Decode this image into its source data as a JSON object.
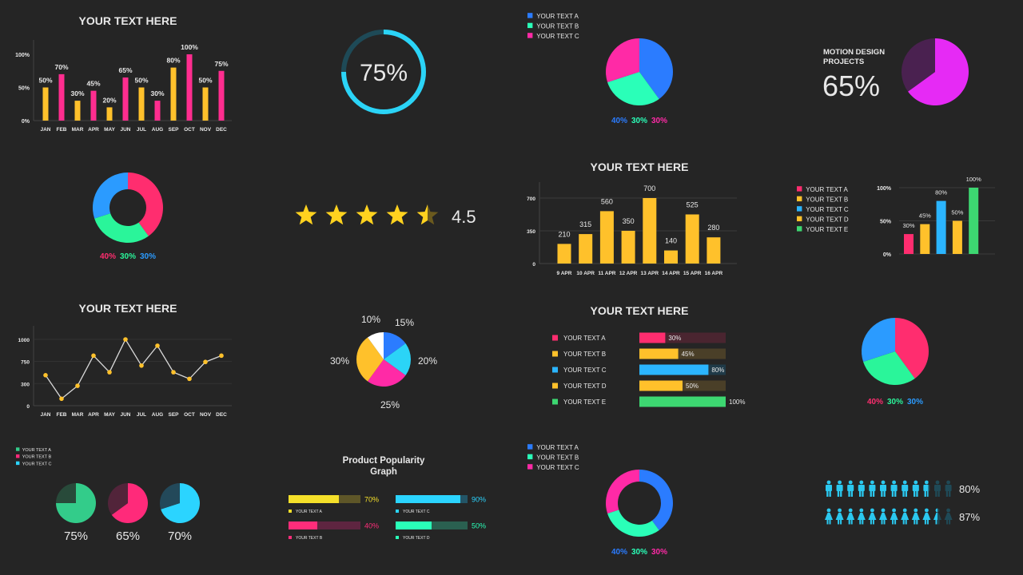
{
  "chart_data": [
    {
      "type": "bar",
      "title": "YOUR TEXT HERE",
      "categories": [
        "JAN",
        "FEB",
        "MAR",
        "APR",
        "MAY",
        "JUN",
        "JUL",
        "AUG",
        "SEP",
        "OCT",
        "NOV",
        "DEC"
      ],
      "values": [
        50,
        70,
        30,
        45,
        20,
        65,
        50,
        30,
        80,
        100,
        50,
        75
      ],
      "labels": [
        "50%",
        "70%",
        "30%",
        "45%",
        "20%",
        "65%",
        "50%",
        "30%",
        "80%",
        "100%",
        "50%",
        "75%"
      ],
      "yticks": [
        "0%",
        "50%",
        "100%"
      ],
      "ylim": [
        0,
        100
      ],
      "colors": [
        "#FFC12B",
        "#FF2D8F"
      ]
    },
    {
      "type": "pie",
      "subtype": "progress-ring",
      "value": 75,
      "label": "75%",
      "color": "#2BD4F7",
      "track": "#1E4A57"
    },
    {
      "type": "pie",
      "legend": [
        "YOUR TEXT A",
        "YOUR TEXT B",
        "YOUR TEXT C"
      ],
      "values": [
        40,
        30,
        30
      ],
      "labels": [
        "40%",
        "30%",
        "30%"
      ],
      "colors": [
        "#2B7CFF",
        "#2AFFB8",
        "#FF2AA6"
      ]
    },
    {
      "type": "pie",
      "title_lines": [
        "MOTION DESIGN",
        "PROJECTS"
      ],
      "values": [
        65,
        35
      ],
      "label": "65%",
      "colors": [
        "#E62AF5",
        "#4A2150"
      ]
    },
    {
      "type": "pie",
      "subtype": "donut",
      "values": [
        40,
        30,
        30
      ],
      "labels": [
        "40%",
        "30%",
        "30%"
      ],
      "colors": [
        "#FF2D6F",
        "#2AF59A",
        "#2B9BFF"
      ]
    },
    {
      "type": "rating",
      "value": 4.5,
      "max": 5,
      "label": "4.5",
      "color": "#FFD21F",
      "dim": "#6B5A1E"
    },
    {
      "type": "bar",
      "title": "YOUR TEXT HERE",
      "categories": [
        "9 APR",
        "10 APR",
        "11 APR",
        "12 APR",
        "13 APR",
        "14 APR",
        "15 APR",
        "16 APR"
      ],
      "values": [
        210,
        315,
        560,
        350,
        700,
        140,
        525,
        280
      ],
      "labels": [
        "210",
        "315",
        "560",
        "350",
        "700",
        "140",
        "525",
        "280"
      ],
      "yticks": [
        "0",
        "350",
        "700"
      ],
      "ylim": [
        0,
        700
      ],
      "color": "#FFC12B"
    },
    {
      "type": "bar",
      "legend": [
        "YOUR TEXT A",
        "YOUR TEXT B",
        "YOUR TEXT C",
        "YOUR TEXT D",
        "YOUR TEXT E"
      ],
      "values": [
        30,
        45,
        80,
        50,
        100
      ],
      "labels": [
        "30%",
        "45%",
        "80%",
        "50%",
        "100%"
      ],
      "yticks": [
        "0%",
        "50%",
        "100%"
      ],
      "ylim": [
        0,
        100
      ],
      "colors": [
        "#FF2D6F",
        "#FFC12B",
        "#2BB5FF",
        "#FFC12B",
        "#3DD771"
      ]
    },
    {
      "type": "line",
      "title": "YOUR TEXT HERE",
      "categories": [
        "JAN",
        "FEB",
        "MAR",
        "APR",
        "MAY",
        "JUN",
        "JUL",
        "AUG",
        "SEP",
        "OCT",
        "NOV",
        "DEC"
      ],
      "values": [
        460,
        105,
        300,
        755,
        505,
        1000,
        605,
        905,
        505,
        405,
        660,
        755
      ],
      "yticks": [
        "0",
        "300",
        "750",
        "1000"
      ],
      "ylim": [
        0,
        1000
      ],
      "line_color": "#D9D9D9",
      "point_color": "#FFC12B"
    },
    {
      "type": "pie",
      "values": [
        15,
        20,
        25,
        30,
        10
      ],
      "labels": [
        "15%",
        "20%",
        "25%",
        "30%",
        "10%"
      ],
      "colors": [
        "#2B7CFF",
        "#2BD4F7",
        "#FF2AA6",
        "#FFC12B",
        "#FFFFFF"
      ]
    },
    {
      "type": "bar",
      "orientation": "horizontal",
      "title": "YOUR TEXT HERE",
      "categories": [
        "YOUR TEXT A",
        "YOUR TEXT B",
        "YOUR TEXT C",
        "YOUR TEXT D",
        "YOUR TEXT E"
      ],
      "values": [
        30,
        45,
        80,
        50,
        100
      ],
      "labels": [
        "30%",
        "45%",
        "80%",
        "50%",
        "100%"
      ],
      "colors": [
        "#FF2D6F",
        "#FFC12B",
        "#2BB5FF",
        "#FFC12B",
        "#3DD771"
      ],
      "tracks": [
        "#4A2530",
        "#4A3F28",
        "#1F3A48",
        "#4A3F28",
        "#2A4A33"
      ]
    },
    {
      "type": "pie",
      "values": [
        40,
        30,
        30
      ],
      "labels": [
        "40%",
        "30%",
        "30%"
      ],
      "colors": [
        "#FF2D6F",
        "#2AF59A",
        "#2B9BFF"
      ]
    },
    {
      "type": "pie",
      "subtype": "multiple",
      "legend": [
        "YOUR TEXT A",
        "YOUR TEXT B",
        "YOUR TEXT C"
      ],
      "values": [
        75,
        65,
        70
      ],
      "labels": [
        "75%",
        "65%",
        "70%"
      ],
      "colors": [
        "#33CC8A",
        "#FF2A7A",
        "#2BD4FF"
      ],
      "tracks": [
        "#284A3A",
        "#52243A",
        "#23495A"
      ]
    },
    {
      "type": "bar",
      "orientation": "horizontal",
      "title_lines": [
        "Product Popularity",
        "Graph"
      ],
      "categories": [
        "YOUR TEXT A",
        "YOUR TEXT B",
        "YOUR TEXT C",
        "YOUR TEXT D"
      ],
      "values": [
        70,
        40,
        90,
        50
      ],
      "labels": [
        "70%",
        "40%",
        "90%",
        "50%"
      ],
      "colors": [
        "#F5E02A",
        "#FF2D7A",
        "#2BD4FF",
        "#2AFFB8"
      ],
      "tracks": [
        "#5E5628",
        "#5E2540",
        "#235567",
        "#2A6050"
      ]
    },
    {
      "type": "pie",
      "subtype": "donut",
      "legend": [
        "YOUR TEXT A",
        "YOUR TEXT B",
        "YOUR TEXT C"
      ],
      "values": [
        40,
        30,
        30
      ],
      "labels": [
        "40%",
        "30%",
        "30%"
      ],
      "colors": [
        "#2B7CFF",
        "#2AFFB8",
        "#FF2AA6"
      ]
    },
    {
      "type": "pictogram",
      "count": 12,
      "rows": [
        {
          "icon": "male",
          "value": 80,
          "label": "80%"
        },
        {
          "icon": "female",
          "value": 87,
          "label": "87%"
        }
      ],
      "color": "#2BC8EF",
      "dim": "#1F4A57"
    }
  ]
}
